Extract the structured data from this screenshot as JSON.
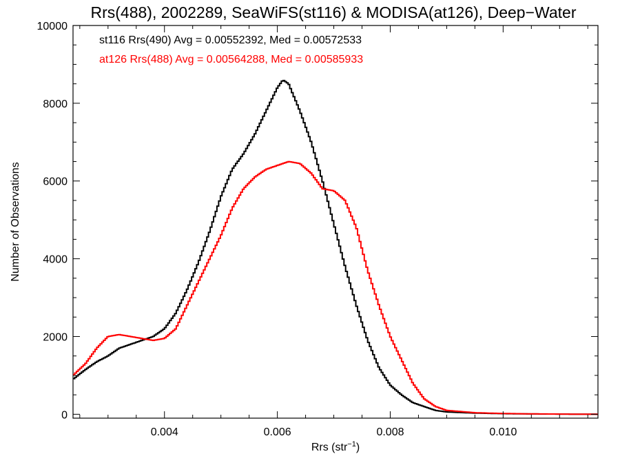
{
  "chart_data": {
    "type": "line",
    "title": "Rrs(488), 2002289, SeaWiFS(st116) & MODISA(at126), Deep−Water",
    "xlabel": "Rrs (str",
    "xlabel_exp": "−1",
    "xlabel_close": ")",
    "ylabel": "Number of Observations",
    "xlim": [
      0.00238,
      0.01168
    ],
    "ylim": [
      -100,
      10000
    ],
    "x_ticks": [
      0.004,
      0.006,
      0.008,
      0.01
    ],
    "x_tick_labels": [
      "0.004",
      "0.006",
      "0.008",
      "0.010"
    ],
    "y_ticks": [
      0,
      2000,
      4000,
      6000,
      8000,
      10000
    ],
    "y_tick_labels": [
      "0",
      "2000",
      "4000",
      "6000",
      "8000",
      "10000"
    ],
    "annotations": [
      "st116 Rrs(490) Avg = 0.00552392, Med = 0.00572533",
      "at126 Rrs(488) Avg = 0.00564288, Med = 0.00585933"
    ],
    "series": [
      {
        "color": "#000000",
        "x": [
          0.00238,
          0.0026,
          0.0028,
          0.003,
          0.0032,
          0.0034,
          0.0036,
          0.0038,
          0.004,
          0.0042,
          0.0044,
          0.0046,
          0.0048,
          0.005,
          0.0052,
          0.0054,
          0.0056,
          0.0058,
          0.006,
          0.0061,
          0.0062,
          0.0064,
          0.0066,
          0.0068,
          0.007,
          0.0072,
          0.0074,
          0.0076,
          0.0078,
          0.008,
          0.0082,
          0.0084,
          0.0086,
          0.0088,
          0.009,
          0.0095,
          0.01,
          0.0105,
          0.011,
          0.01168
        ],
        "y": [
          900,
          1150,
          1350,
          1500,
          1700,
          1800,
          1900,
          2000,
          2200,
          2600,
          3200,
          3900,
          4700,
          5600,
          6300,
          6700,
          7200,
          7800,
          8400,
          8600,
          8500,
          7800,
          7000,
          6000,
          4900,
          3800,
          2800,
          1900,
          1200,
          750,
          500,
          300,
          200,
          100,
          60,
          30,
          15,
          8,
          5,
          0
        ]
      },
      {
        "color": "#ff0000",
        "x": [
          0.00238,
          0.0026,
          0.0028,
          0.003,
          0.0032,
          0.0034,
          0.0036,
          0.0038,
          0.004,
          0.0042,
          0.0044,
          0.0046,
          0.0048,
          0.005,
          0.0052,
          0.0054,
          0.0056,
          0.0058,
          0.006,
          0.0062,
          0.0064,
          0.0066,
          0.0068,
          0.007,
          0.0072,
          0.0074,
          0.0076,
          0.0078,
          0.008,
          0.0082,
          0.0084,
          0.0086,
          0.0088,
          0.009,
          0.0095,
          0.01,
          0.0105,
          0.011,
          0.01168
        ],
        "y": [
          1000,
          1300,
          1700,
          2000,
          2050,
          2000,
          1950,
          1900,
          1950,
          2200,
          2800,
          3400,
          4000,
          4600,
          5300,
          5800,
          6100,
          6300,
          6400,
          6500,
          6450,
          6200,
          5800,
          5750,
          5500,
          4800,
          3700,
          2800,
          2000,
          1400,
          800,
          400,
          200,
          100,
          40,
          20,
          10,
          5,
          0
        ]
      }
    ]
  }
}
